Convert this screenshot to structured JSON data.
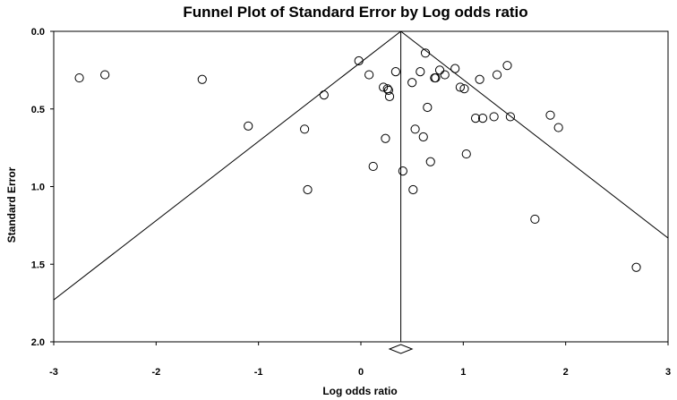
{
  "chart_data": {
    "type": "scatter",
    "title": "Funnel Plot of Standard Error by Log odds ratio",
    "xlabel": "Log odds ratio",
    "ylabel": "Standard Error",
    "xlim": [
      -3,
      3
    ],
    "ylim": [
      0,
      2
    ],
    "y_reversed": true,
    "x_ticks": [
      -3,
      -2,
      -1,
      0,
      1,
      2,
      3
    ],
    "x_tick_labels": [
      "-3",
      "-2",
      "-1",
      "0",
      "1",
      "2",
      "3"
    ],
    "y_ticks": [
      0,
      0.5,
      1,
      1.5,
      2
    ],
    "y_tick_labels": [
      "0.0",
      "0.5",
      "1.0",
      "1.5",
      "2.0"
    ],
    "grid": false,
    "legend": "none",
    "marker": "open-circle",
    "summary_estimate": 0.39,
    "summary_diamond": {
      "center": 0.39,
      "half_width": 0.11
    },
    "funnel_z": 1.96,
    "points": [
      {
        "x": -2.75,
        "y": 0.3
      },
      {
        "x": -2.5,
        "y": 0.28
      },
      {
        "x": -1.55,
        "y": 0.31
      },
      {
        "x": -1.1,
        "y": 0.61
      },
      {
        "x": -0.55,
        "y": 0.63
      },
      {
        "x": -0.52,
        "y": 1.02
      },
      {
        "x": -0.36,
        "y": 0.41
      },
      {
        "x": -0.02,
        "y": 0.19
      },
      {
        "x": 0.08,
        "y": 0.28
      },
      {
        "x": 0.12,
        "y": 0.87
      },
      {
        "x": 0.22,
        "y": 0.36
      },
      {
        "x": 0.24,
        "y": 0.69
      },
      {
        "x": 0.26,
        "y": 0.37
      },
      {
        "x": 0.27,
        "y": 0.38
      },
      {
        "x": 0.28,
        "y": 0.42
      },
      {
        "x": 0.34,
        "y": 0.26
      },
      {
        "x": 0.41,
        "y": 0.9
      },
      {
        "x": 0.5,
        "y": 0.33
      },
      {
        "x": 0.51,
        "y": 1.02
      },
      {
        "x": 0.53,
        "y": 0.63
      },
      {
        "x": 0.58,
        "y": 0.26
      },
      {
        "x": 0.61,
        "y": 0.68
      },
      {
        "x": 0.63,
        "y": 0.14
      },
      {
        "x": 0.65,
        "y": 0.49
      },
      {
        "x": 0.68,
        "y": 0.84
      },
      {
        "x": 0.72,
        "y": 0.3
      },
      {
        "x": 0.73,
        "y": 0.3
      },
      {
        "x": 0.77,
        "y": 0.25
      },
      {
        "x": 0.82,
        "y": 0.28
      },
      {
        "x": 0.92,
        "y": 0.24
      },
      {
        "x": 0.97,
        "y": 0.36
      },
      {
        "x": 1.01,
        "y": 0.37
      },
      {
        "x": 1.03,
        "y": 0.79
      },
      {
        "x": 1.12,
        "y": 0.56
      },
      {
        "x": 1.16,
        "y": 0.31
      },
      {
        "x": 1.19,
        "y": 0.56
      },
      {
        "x": 1.3,
        "y": 0.55
      },
      {
        "x": 1.33,
        "y": 0.28
      },
      {
        "x": 1.43,
        "y": 0.22
      },
      {
        "x": 1.46,
        "y": 0.55
      },
      {
        "x": 1.7,
        "y": 1.21
      },
      {
        "x": 1.85,
        "y": 0.54
      },
      {
        "x": 1.93,
        "y": 0.62
      },
      {
        "x": 2.69,
        "y": 1.52
      }
    ]
  }
}
